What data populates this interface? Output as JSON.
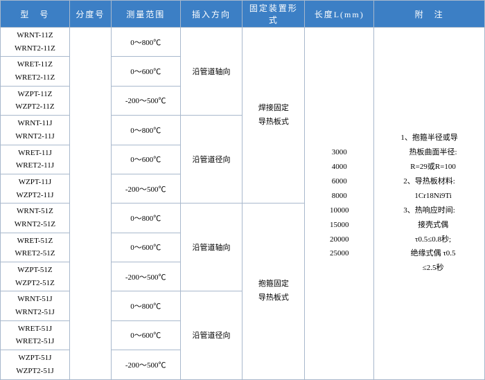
{
  "headers": {
    "model": "型　号",
    "graduation": "分度号",
    "range": "测量范围",
    "direction": "插入方向",
    "fixture": "固定装置形式",
    "length": "长度L(mm)",
    "note": "附　注"
  },
  "ranges": {
    "r800": "0～800℃",
    "r600": "0～600℃",
    "r200_500": "-200～500℃"
  },
  "directions": {
    "axial": "沿管道轴向",
    "radial": "沿管道径向"
  },
  "fixtures": {
    "weld": "焊接固定\n导热板式",
    "clamp": "抱箍固定\n导热板式"
  },
  "models": {
    "m1a": "WRNT-11Z",
    "m1b": "WRNT2-11Z",
    "m2a": "WRET-11Z",
    "m2b": "WRET2-11Z",
    "m3a": "WZPT-11Z",
    "m3b": "WZPT2-11Z",
    "m4a": "WRNT-11J",
    "m4b": "WRNT2-11J",
    "m5a": "WRET-11J",
    "m5b": "WRET2-11J",
    "m6a": "WZPT-11J",
    "m6b": "WZPT2-11J",
    "m7a": "WRNT-51Z",
    "m7b": "WRNT2-51Z",
    "m8a": "WRET-51Z",
    "m8b": "WRET2-51Z",
    "m9a": "WZPT-51Z",
    "m9b": "WZPT2-51Z",
    "m10a": "WRNT-51J",
    "m10b": "WRNT2-51J",
    "m11a": "WRET-51J",
    "m11b": "WRET2-51J",
    "m12a": "WZPT-51J",
    "m12b": "WZPT2-51J"
  },
  "lengths": [
    "3000",
    "4000",
    "6000",
    "8000",
    "10000",
    "15000",
    "20000",
    "25000"
  ],
  "notes": {
    "l1": "1、抱箍半径或导",
    "l2": "　热板曲面半径:",
    "l3": "　R=29或R=100",
    "l4": "2、导热板材料:",
    "l5": "　1Cr18Ni9Ti",
    "l6": "3、热响应时间:",
    "l7": "　接壳式偶",
    "l8": "　τ0.5≤0.8秒;",
    "l9": "　绝缘式偶 τ0.5",
    "l10": "　≤2.5秒"
  }
}
